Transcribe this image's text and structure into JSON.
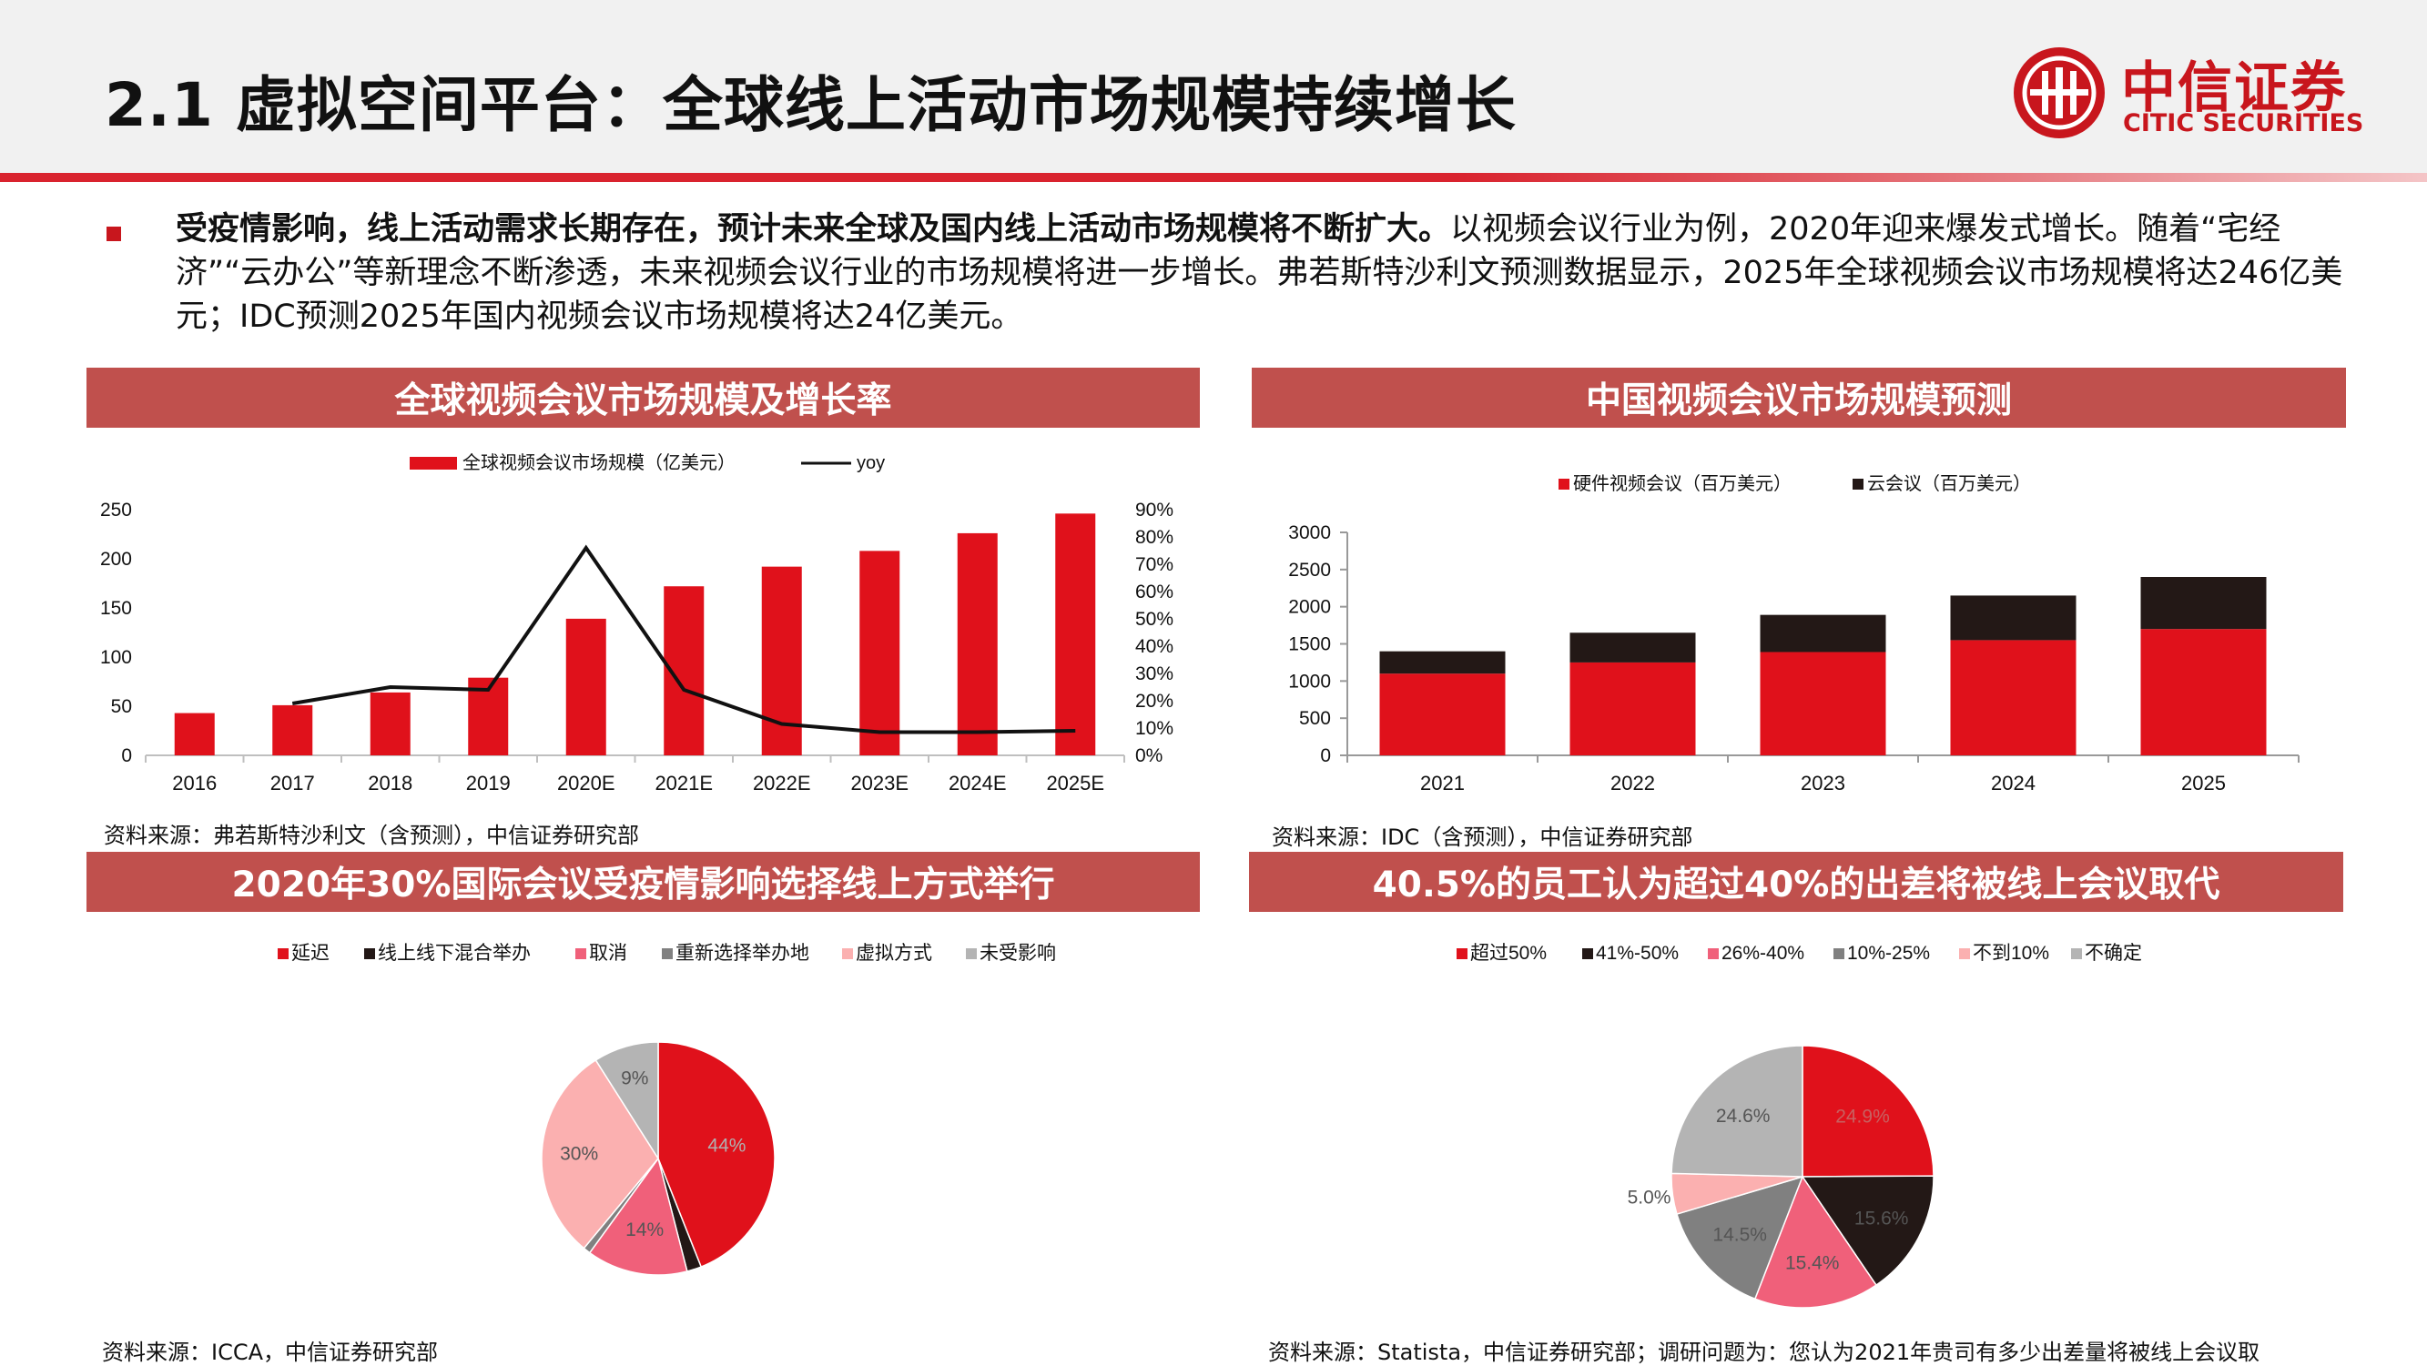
{
  "header": {
    "title": "2.1 虚拟空间平台：全球线上活动市场规模持续增长",
    "logo_cn": "中信证券",
    "logo_en": "CITIC SECURITIES"
  },
  "intro": {
    "bold": "受疫情影响，线上活动需求长期存在，预计未来全球及国内线上活动市场规模将不断扩大。",
    "rest": "以视频会议行业为例，2020年迎来爆发式增长。随着“宅经济”“云办公”等新理念不断渗透，未来视频会议行业的市场规模将进一步增长。弗若斯特沙利文预测数据显示，2025年全球视频会议市场规模将达246亿美元；IDC预测2025年国内视频会议市场规模将达24亿美元。"
  },
  "panels": {
    "p1": {
      "title": "全球视频会议市场规模及增长率",
      "source": "资料来源：弗若斯特沙利文（含预测），中信证券研究部"
    },
    "p2": {
      "title": "中国视频会议市场规模预测",
      "source": "资料来源：IDC（含预测），中信证券研究部"
    },
    "p3": {
      "title": "2020年30%国际会议受疫情影响选择线上方式举行",
      "source": "资料来源：ICCA，中信证券研究部"
    },
    "p4": {
      "title": "40.5%的员工认为超过40%的出差将被线上会议取代",
      "source": "资料来源：Statista，中信证券研究部；调研问题为：您认为2021年贵司有多少出差量将被线上会议取"
    }
  },
  "colors": {
    "red": "#e0111b",
    "dark": "#231816",
    "pink": "#f0607a",
    "gray": "#808080",
    "lightpink": "#fbb0b0",
    "lightgray": "#b4b4b4",
    "panel": "#c0504d"
  },
  "chart_data": [
    {
      "type": "bar",
      "categories": [
        "2016",
        "2017",
        "2018",
        "2019",
        "2020E",
        "2021E",
        "2022E",
        "2023E",
        "2024E",
        "2025E"
      ],
      "series": [
        {
          "name": "全球视频会议市场规模（亿美元）",
          "values": [
            43,
            51,
            64,
            79,
            139,
            172,
            192,
            208,
            226,
            246
          ],
          "axis": "left"
        },
        {
          "name": "yoy",
          "type": "line",
          "values": [
            null,
            0.19,
            0.25,
            0.24,
            0.76,
            0.24,
            0.115,
            0.085,
            0.085,
            0.09
          ],
          "axis": "right"
        }
      ],
      "ylim": [
        0,
        250
      ],
      "yticks": [
        0,
        50,
        100,
        150,
        200,
        250
      ],
      "y2lim": [
        0,
        0.9
      ],
      "y2ticks": [
        "0%",
        "10%",
        "20%",
        "30%",
        "40%",
        "50%",
        "60%",
        "70%",
        "80%",
        "90%"
      ],
      "legend": "top"
    },
    {
      "type": "bar",
      "stacked": true,
      "categories": [
        "2021",
        "2022",
        "2023",
        "2024",
        "2025"
      ],
      "series": [
        {
          "name": "硬件视频会议（百万美元）",
          "values": [
            1100,
            1250,
            1390,
            1550,
            1700
          ]
        },
        {
          "name": "云会议（百万美元）",
          "values": [
            300,
            400,
            500,
            600,
            700
          ]
        }
      ],
      "ylim": [
        0,
        3000
      ],
      "yticks": [
        0,
        500,
        1000,
        1500,
        2000,
        2500,
        3000
      ],
      "legend": "top"
    },
    {
      "type": "pie",
      "labels": [
        "延迟",
        "线上线下混合举办",
        "取消",
        "重新选择举办地",
        "虚拟方式",
        "未受影响"
      ],
      "values": [
        44,
        2,
        14,
        1,
        30,
        9
      ],
      "value_labels": [
        "44%",
        "",
        "14%",
        "",
        "30%",
        "9%"
      ],
      "legend": "top"
    },
    {
      "type": "pie",
      "labels": [
        "超过50%",
        "41%-50%",
        "26%-40%",
        "10%-25%",
        "不到10%",
        "不确定"
      ],
      "values": [
        24.9,
        15.6,
        15.4,
        14.5,
        5.0,
        24.6
      ],
      "value_labels": [
        "24.9%",
        "15.6%",
        "15.4%",
        "14.5%",
        "5.0%",
        "24.6%"
      ],
      "legend": "top"
    }
  ]
}
